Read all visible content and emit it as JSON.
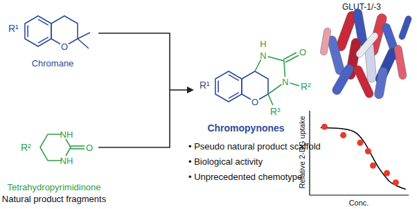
{
  "structures": {
    "chromane": {
      "label": "Chromane",
      "atoms": {
        "substituent": "R¹",
        "oxygen": "O"
      }
    },
    "tetrahydropyrimidinone": {
      "label": "Tetrahydropyrimidinone",
      "caption": "Natural product fragments",
      "atoms": {
        "substituent": "R²",
        "nh_top": "NH",
        "nh_bottom": "NH",
        "oxygen": "O"
      }
    },
    "chromopynone": {
      "label": "Chromopynones",
      "atoms": {
        "r1": "R¹",
        "nh_h": "H",
        "nh_n": "N",
        "oxygen_carbonyl": "O",
        "n": "N",
        "r2": "R²",
        "r3": "R³",
        "oxygen_ring": "O"
      }
    }
  },
  "bullets": [
    "Pseudo natural product scaffold",
    "Biological activity",
    "Unprecedented chemotype"
  ],
  "bullet_mark": "•",
  "target": "GLUT-1/-3",
  "chart_data": {
    "type": "scatter",
    "x_label": "Conc.",
    "y_label": "Relative 2-DG uptake",
    "xlim": [
      0,
      10
    ],
    "ylim": [
      0,
      100
    ],
    "grid": false,
    "tick_labels": false,
    "series": [
      {
        "type": "line",
        "color": "#000000",
        "line_style": "solid",
        "x": [
          1.1,
          3,
          4.5,
          5.5,
          6,
          6.5,
          7,
          7.5,
          8,
          9,
          9.7
        ],
        "values": [
          80,
          79,
          75,
          63,
          53,
          42,
          32,
          24,
          17,
          10,
          7
        ]
      },
      {
        "type": "scatter",
        "color": "#e8392b",
        "marker": "circle",
        "x": [
          1.5,
          3.4,
          5.1,
          5.9,
          6.4,
          7.8,
          8.7
        ],
        "values": [
          81,
          71,
          62,
          52,
          35,
          26,
          15
        ]
      }
    ]
  }
}
